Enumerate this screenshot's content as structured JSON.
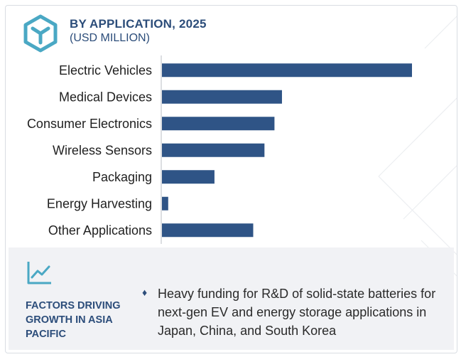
{
  "header": {
    "title": "BY APPLICATION, 2025",
    "subtitle": "(USD MILLION)",
    "logo_icon": "hexagon-cube-icon"
  },
  "colors": {
    "bar": "#2f5486",
    "accent": "#2c4d7a",
    "logo": "#4aa8c4",
    "panel_bg": "#f1f2f5"
  },
  "chart_data": {
    "type": "bar",
    "orientation": "horizontal",
    "categories": [
      "Electric Vehicles",
      "Medical Devices",
      "Consumer Electronics",
      "Wireless Sensors ",
      "Packaging",
      "Energy Harvesting",
      "Other Applications"
    ],
    "values": [
      100,
      48,
      45,
      41,
      21,
      2.5,
      36.5
    ],
    "xlim": [
      0,
      100
    ],
    "grid": false,
    "legend": "none"
  },
  "factors": {
    "icon": "trend-line-icon",
    "title": "FACTORS DRIVING GROWTH IN ASIA PACIFIC",
    "items": [
      "Heavy funding for R&D of solid-state batteries for next-gen EV and energy storage applications in Japan, China, and South Korea"
    ]
  }
}
